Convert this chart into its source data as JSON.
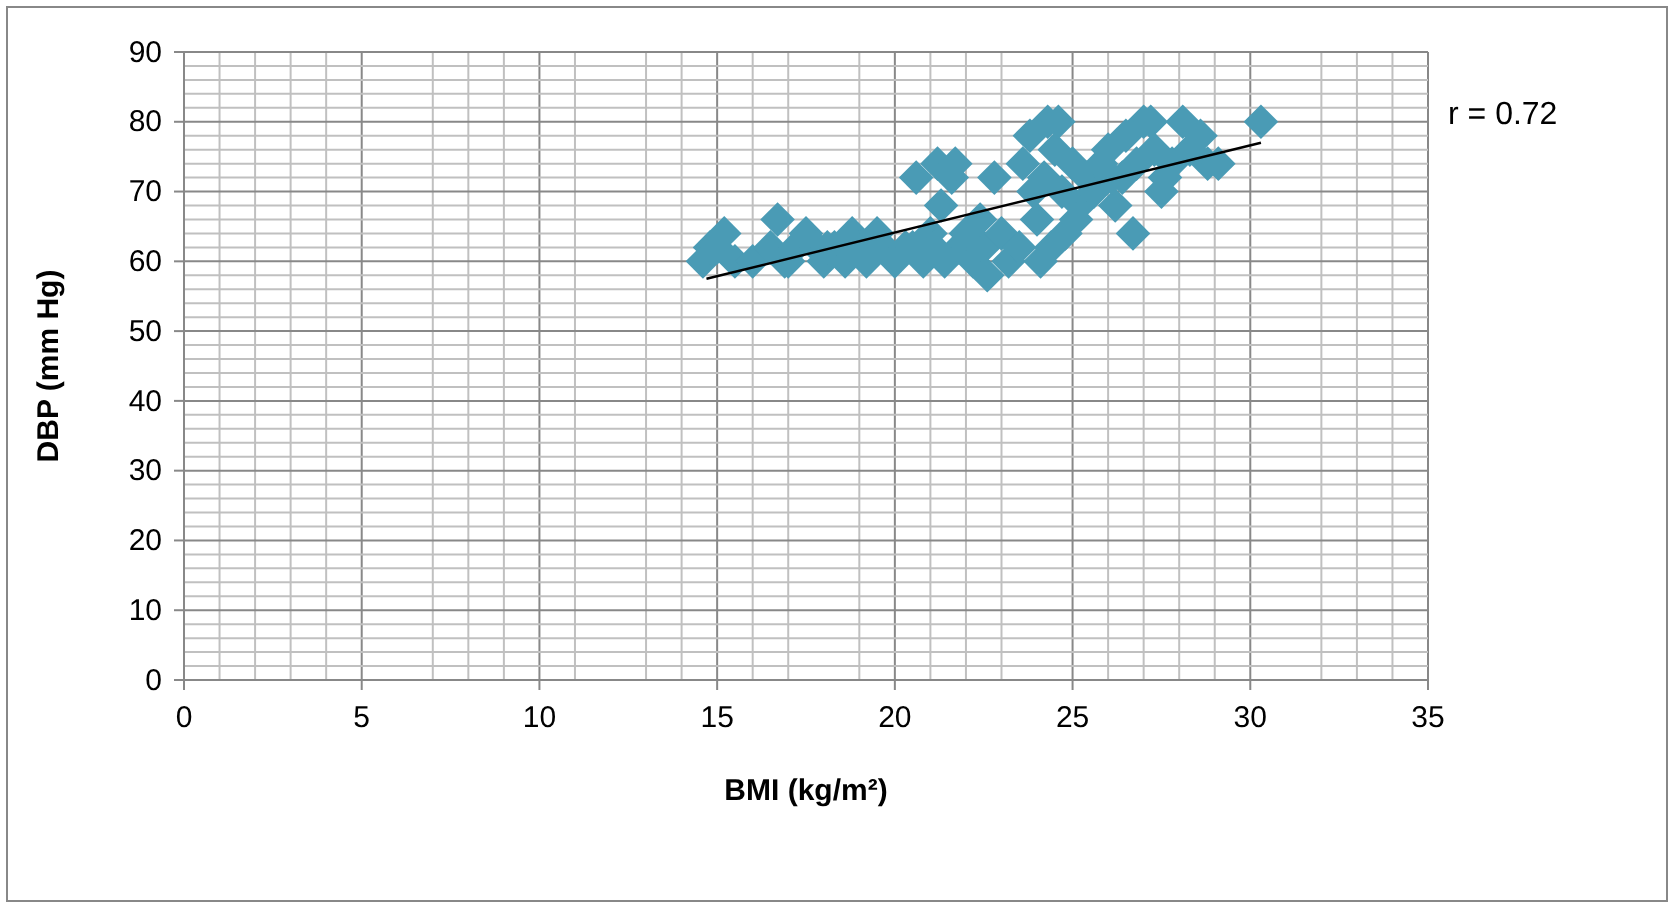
{
  "chart_data": {
    "type": "scatter",
    "xlabel": "BMI (kg/m²)",
    "ylabel": "DBP (mm Hg)",
    "annotations": [
      "r = 0.72"
    ],
    "xlim": [
      0,
      35
    ],
    "xticks": [
      0,
      5,
      10,
      15,
      20,
      25,
      30,
      35
    ],
    "ylim": [
      0,
      90
    ],
    "yticks": [
      0,
      10,
      20,
      30,
      40,
      50,
      60,
      70,
      80,
      90
    ],
    "grid": true,
    "marker": "diamond",
    "series": [
      {
        "color": "#4a9bb5",
        "x": [
          14.6,
          14.8,
          15.0,
          15.2,
          15.5,
          16.0,
          16.5,
          16.7,
          16.9,
          17.2,
          17.5,
          17.8,
          18.0,
          18.3,
          18.6,
          18.8,
          19.0,
          19.2,
          19.5,
          19.7,
          20.0,
          20.3,
          20.6,
          20.8,
          21.0,
          21.2,
          21.3,
          21.4,
          21.6,
          21.7,
          21.8,
          22.0,
          22.2,
          22.5,
          22.6,
          22.8,
          23.0,
          23.2,
          23.5,
          23.6,
          23.8,
          24.0,
          24.1,
          24.2,
          24.3,
          24.4,
          24.5,
          24.6,
          24.7,
          24.8,
          25.0,
          25.2,
          25.4,
          25.6,
          25.8,
          26.0,
          26.2,
          26.4,
          26.5,
          26.7,
          26.8,
          27.0,
          27.2,
          27.3,
          27.5,
          27.6,
          27.8,
          28.1,
          28.3,
          28.6,
          28.8,
          29.1,
          30.3,
          23.9,
          25.1,
          26.1,
          22.4,
          21.1,
          20.5,
          17.0,
          18.1
        ],
        "values": [
          60,
          62,
          62,
          64,
          60,
          60,
          62,
          66,
          60,
          62,
          64,
          62,
          60,
          62,
          60,
          64,
          62,
          60,
          64,
          62,
          60,
          62,
          72,
          60,
          64,
          74,
          68,
          60,
          72,
          74,
          62,
          64,
          60,
          62,
          58,
          72,
          64,
          60,
          62,
          74,
          78,
          66,
          60,
          72,
          80,
          62,
          76,
          80,
          70,
          64,
          74,
          68,
          72,
          70,
          74,
          76,
          68,
          72,
          78,
          64,
          74,
          80,
          80,
          76,
          70,
          72,
          74,
          80,
          76,
          78,
          74,
          74,
          80,
          70,
          66,
          72,
          66,
          62,
          62,
          60,
          62
        ]
      },
      {
        "type": "line",
        "color": "#000000",
        "marker": "none",
        "x": [
          14.7,
          30.3
        ],
        "values": [
          57.5,
          77
        ]
      }
    ]
  }
}
